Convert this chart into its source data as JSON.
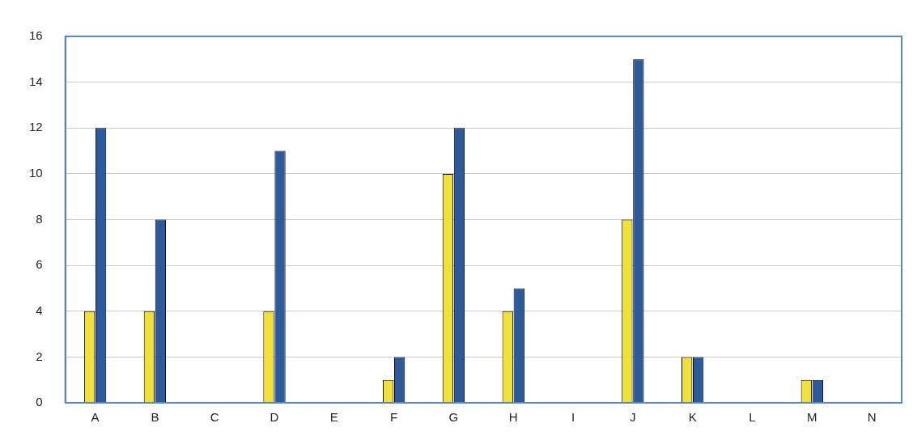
{
  "chart_data": {
    "type": "bar",
    "categories": [
      "A",
      "B",
      "C",
      "D",
      "E",
      "F",
      "G",
      "H",
      "I",
      "J",
      "K",
      "L",
      "M",
      "N"
    ],
    "series": [
      {
        "color": "#f2e03a",
        "values": [
          4,
          4,
          0,
          4,
          0,
          1,
          10,
          4,
          0,
          8,
          2,
          0,
          1,
          0
        ]
      },
      {
        "color": "#2d5a9a",
        "values": [
          12,
          8,
          0,
          11,
          0,
          2,
          12,
          5,
          0,
          15,
          2,
          0,
          1,
          0
        ]
      }
    ],
    "ylim": [
      0,
      16
    ],
    "yticks": [
      0,
      2,
      4,
      6,
      8,
      10,
      12,
      14,
      16
    ],
    "grid": "y",
    "legend": false
  }
}
